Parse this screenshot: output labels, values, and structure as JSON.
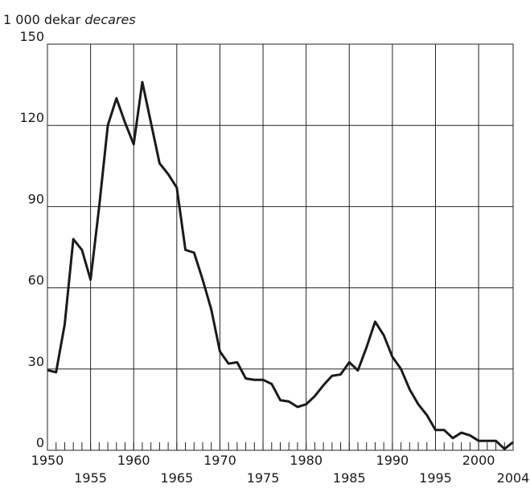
{
  "chart_data": {
    "type": "line",
    "y_label": "1 000 dekar",
    "y_label_en": "decares",
    "x": [
      1950,
      1951,
      1952,
      1953,
      1954,
      1955,
      1956,
      1957,
      1958,
      1959,
      1960,
      1961,
      1962,
      1963,
      1964,
      1965,
      1966,
      1967,
      1968,
      1969,
      1970,
      1971,
      1972,
      1973,
      1974,
      1975,
      1976,
      1977,
      1978,
      1979,
      1980,
      1981,
      1982,
      1983,
      1984,
      1985,
      1986,
      1987,
      1988,
      1989,
      1990,
      1991,
      1992,
      1993,
      1994,
      1995,
      1996,
      1997,
      1998,
      1999,
      2000,
      2001,
      2002,
      2003,
      2004
    ],
    "series": [
      {
        "color": "#1a1a1a",
        "values": [
          29.6,
          28.8,
          46.5,
          78,
          74,
          63,
          90,
          120,
          130,
          121,
          113,
          136,
          121,
          106,
          102,
          97,
          74,
          73,
          63,
          52,
          36.5,
          32,
          32.5,
          26.5,
          26,
          26,
          24.5,
          18.5,
          18,
          16,
          17,
          20,
          24,
          27.5,
          28,
          32.5,
          29.5,
          38,
          47.5,
          42.5,
          34.5,
          30,
          22.5,
          17,
          13,
          7.5,
          7.5,
          4.5,
          6.5,
          5.5,
          3.5,
          3.5,
          3.5,
          0.5,
          3
        ]
      }
    ],
    "xlim": [
      1950,
      2004
    ],
    "xticks": [
      1950,
      1955,
      1960,
      1965,
      1970,
      1975,
      1980,
      1985,
      1990,
      1995,
      2000,
      2004
    ],
    "ylim": [
      0,
      150
    ],
    "yticks": [
      0,
      30,
      60,
      90,
      120,
      150
    ],
    "grid": true
  }
}
